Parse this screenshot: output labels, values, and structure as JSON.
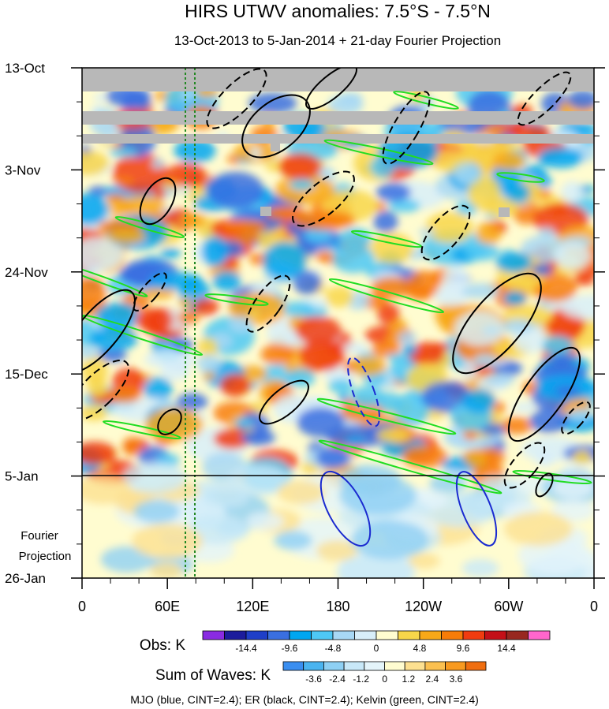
{
  "chart_data": {
    "type": "heatmap",
    "title": "HIRS UTWV anomalies: 7.5°S - 7.5°N",
    "subtitle": "13-Oct-2013 to 5-Jan-2014 + 21-day Fourier Projection",
    "y_ticks": [
      "13-Oct",
      "3-Nov",
      "24-Nov",
      "15-Dec",
      "5-Jan",
      "26-Jan"
    ],
    "x_ticks": [
      "0",
      "60E",
      "120E",
      "180",
      "120W",
      "60W",
      "0"
    ],
    "projection_label": [
      "Fourier",
      "Projection"
    ],
    "projection_start": "5-Jan",
    "obs_legend": {
      "label": "Obs: K",
      "colors": [
        "#8a2be2",
        "#1c1c9c",
        "#1f3fc8",
        "#3a6fe0",
        "#00a6f0",
        "#4ec8f5",
        "#a8d8f5",
        "#d8eef9",
        "#fffcd0",
        "#f8d64a",
        "#f8a818",
        "#f87c08",
        "#f03c10",
        "#c41018",
        "#982820",
        "#ff66cc"
      ],
      "ticks": [
        "-14.4",
        "-9.6",
        "-4.8",
        "0",
        "4.8",
        "9.6",
        "14.4"
      ]
    },
    "waves_legend": {
      "label": "Sum of Waves: K",
      "colors": [
        "#3a8ef0",
        "#4ab4f0",
        "#8ed0f4",
        "#c8e8f8",
        "#e4f4fa",
        "#fffcd0",
        "#fde090",
        "#fbc050",
        "#f89a20",
        "#f06e10"
      ],
      "ticks": [
        "-3.6",
        "-2.4",
        "-1.2",
        "0",
        "1.2",
        "2.4",
        "3.6"
      ]
    },
    "footer": "MJO (blue, CINT=2.4); ER (black, CINT=2.4); Kelvin (green, CINT=2.4)",
    "contour_colors": {
      "mjo": "#1a2ad0",
      "er": "#000000",
      "kelvin": "#22dd22",
      "reference": "#228822"
    }
  }
}
